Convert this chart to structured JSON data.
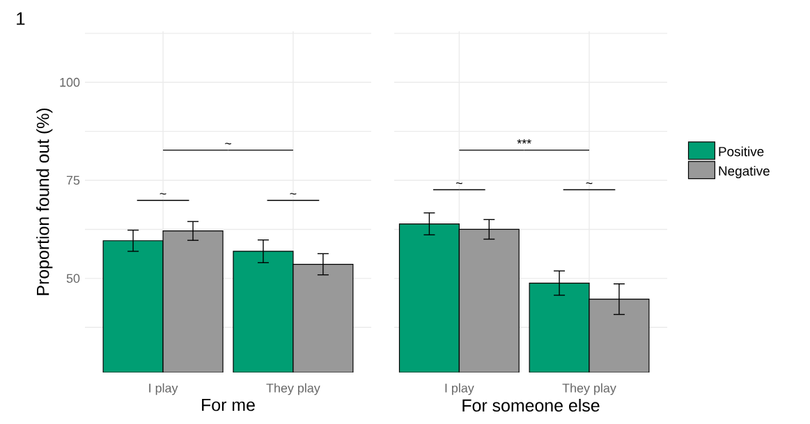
{
  "chart_data": [
    {
      "type": "bar",
      "categories": [
        "I play",
        "They play"
      ],
      "xlabel": "For me",
      "ylabel": "Proportion found out (%)",
      "series": [
        {
          "color": "#009e73",
          "values": [
            59.6,
            56.9
          ],
          "errors": [
            2.7,
            2.9
          ]
        },
        {
          "color": "#999999",
          "values": [
            62.1,
            53.6
          ],
          "errors": [
            2.4,
            2.7
          ]
        }
      ],
      "ylim": [
        26,
        113
      ],
      "yticks": [
        {
          "value": 37.5,
          "label": null
        },
        50,
        {
          "value": 62.5,
          "label": null
        },
        75,
        {
          "value": 87.5,
          "label": null
        },
        100,
        {
          "value": 112.5,
          "label": null
        }
      ],
      "grid": true,
      "annotations": [
        "1",
        "~",
        "~",
        "~"
      ]
    },
    {
      "type": "bar",
      "categories": [
        "I play",
        "They play"
      ],
      "xlabel": "For someone else",
      "series": [
        {
          "name": "Positive",
          "color": "#009e73",
          "values": [
            63.9,
            48.8
          ],
          "errors": [
            2.8,
            3.1
          ]
        },
        {
          "name": "Negative",
          "color": "#999999",
          "values": [
            62.5,
            44.7
          ],
          "errors": [
            2.5,
            3.9
          ]
        }
      ],
      "ylim": [
        26,
        113
      ],
      "yticks": [
        {
          "value": 37.5,
          "label": null
        },
        50,
        {
          "value": 62.5,
          "label": null
        },
        75,
        {
          "value": 87.5,
          "label": null
        },
        100,
        {
          "value": 112.5,
          "label": null
        }
      ],
      "tick_labels": "x",
      "grid": true,
      "legend": "right",
      "annotations": [
        "***",
        "~",
        "~"
      ]
    }
  ]
}
